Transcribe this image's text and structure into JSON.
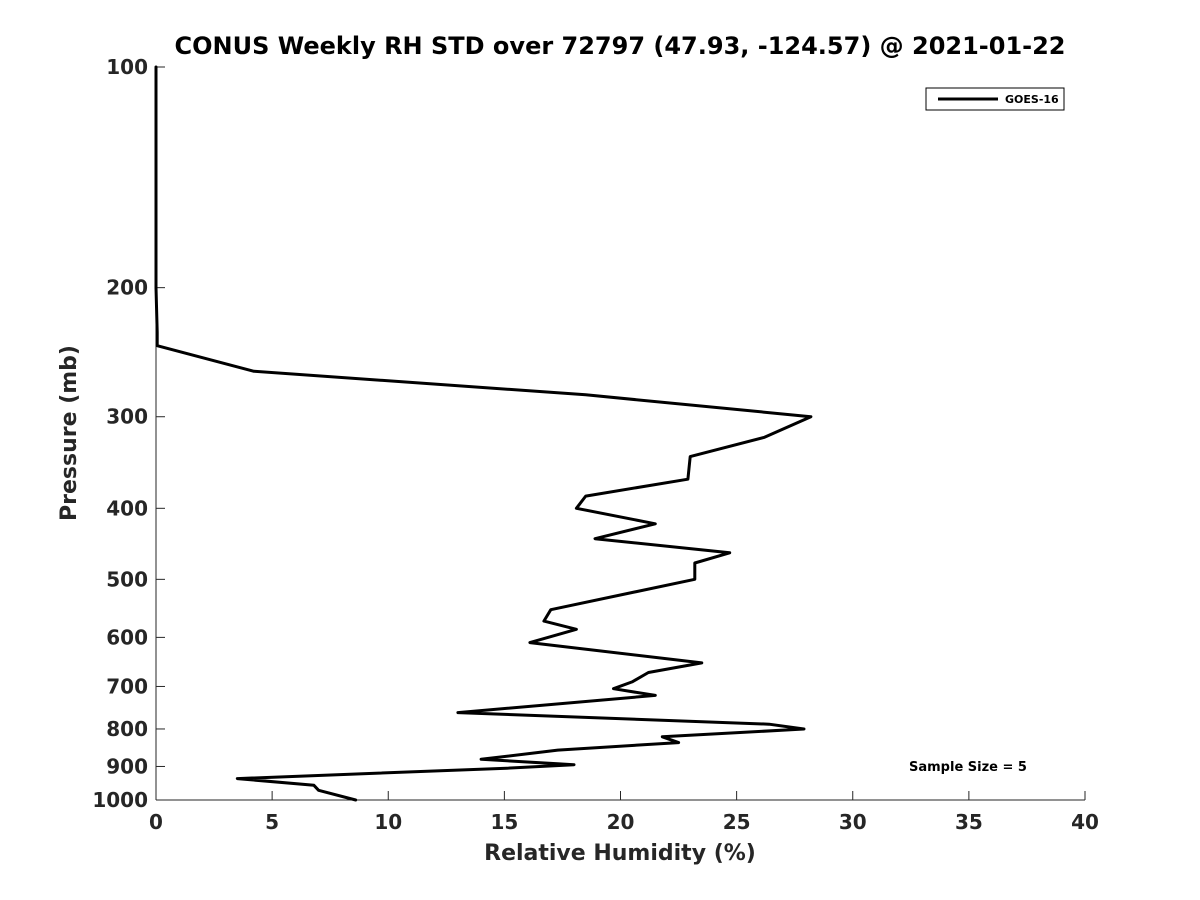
{
  "chart_data": {
    "type": "line",
    "title": "CONUS Weekly RH STD over 72797 (47.93, -124.57) @ 2021-01-22",
    "xlabel": "Relative Humidity (%)",
    "ylabel": "Pressure (mb)",
    "xlim": [
      0,
      40
    ],
    "ylim": [
      1000,
      100
    ],
    "yscale": "log",
    "y_reversed": true,
    "grid": false,
    "legend_position": "top-right",
    "x_ticks": [
      0,
      5,
      10,
      15,
      20,
      25,
      30,
      35,
      40
    ],
    "x_tick_labels": [
      "0",
      "5",
      "10",
      "15",
      "20",
      "25",
      "30",
      "35",
      "40"
    ],
    "y_ticks": [
      100,
      200,
      300,
      400,
      500,
      600,
      700,
      800,
      900,
      1000
    ],
    "y_tick_labels": [
      "100",
      "200",
      "300",
      "400",
      "500",
      "600",
      "700",
      "800",
      "900",
      "1000"
    ],
    "series": [
      {
        "name": "GOES-16",
        "color": "#000000",
        "points": [
          [
            0,
            100
          ],
          [
            0,
            150
          ],
          [
            0,
            200
          ],
          [
            0.05,
            230
          ],
          [
            0.05,
            240
          ],
          [
            4.2,
            260
          ],
          [
            18.5,
            280
          ],
          [
            28.2,
            300
          ],
          [
            26.2,
            320
          ],
          [
            23.0,
            340
          ],
          [
            22.9,
            365
          ],
          [
            18.5,
            385
          ],
          [
            18.1,
            400
          ],
          [
            21.5,
            420
          ],
          [
            18.9,
            440
          ],
          [
            24.7,
            460
          ],
          [
            23.2,
            475
          ],
          [
            23.2,
            500
          ],
          [
            17.0,
            550
          ],
          [
            16.7,
            570
          ],
          [
            18.1,
            585
          ],
          [
            16.1,
            610
          ],
          [
            23.5,
            650
          ],
          [
            21.2,
            670
          ],
          [
            20.5,
            690
          ],
          [
            19.7,
            705
          ],
          [
            21.5,
            720
          ],
          [
            13.0,
            760
          ],
          [
            26.4,
            788
          ],
          [
            27.9,
            800
          ],
          [
            21.8,
            820
          ],
          [
            22.5,
            835
          ],
          [
            17.3,
            855
          ],
          [
            14.0,
            880
          ],
          [
            18.0,
            895
          ],
          [
            15.1,
            905
          ],
          [
            3.5,
            935
          ],
          [
            6.8,
            955
          ],
          [
            7.0,
            970
          ],
          [
            8.6,
            1000
          ]
        ]
      }
    ],
    "annotation": "Sample Size = 5"
  }
}
